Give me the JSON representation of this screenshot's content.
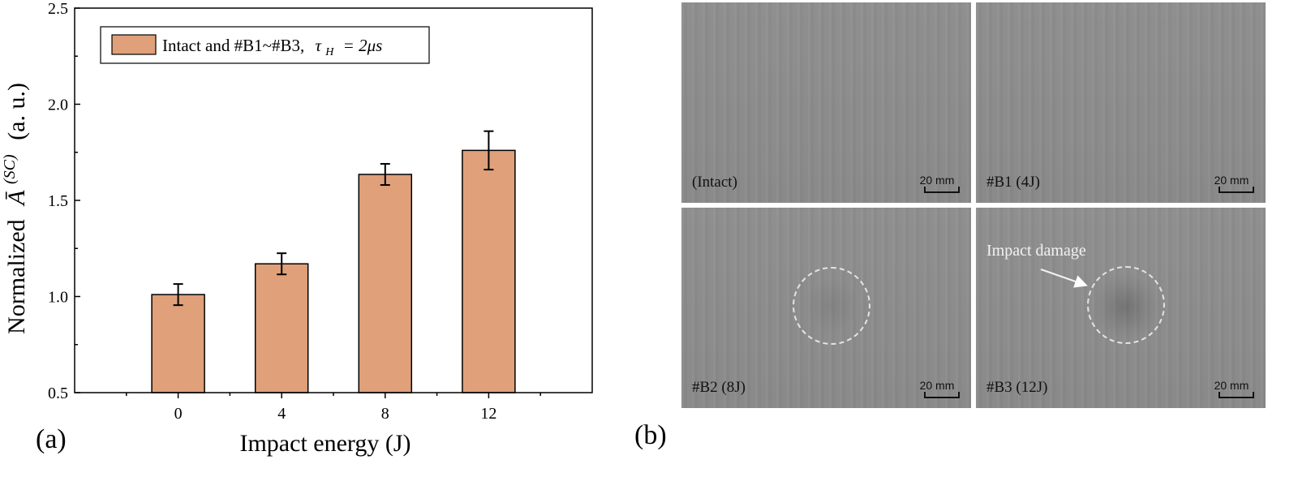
{
  "chart_data": {
    "type": "bar",
    "categories": [
      "0",
      "4",
      "8",
      "12"
    ],
    "values": [
      1.01,
      1.17,
      1.635,
      1.76
    ],
    "errors": [
      0.055,
      0.055,
      0.055,
      0.1
    ],
    "xlabel": "Impact energy (J)",
    "ylabel_prefix": "Normalized",
    "ylabel_symbol": "Ā",
    "ylabel_superscript": "(SC)",
    "ylabel_suffix": "(a. u.)",
    "ylim": [
      0.5,
      2.5
    ],
    "yticks": [
      "0.5",
      "1.0",
      "1.5",
      "2.0",
      "2.5"
    ],
    "legend": {
      "label": "Intact and #B1~#B3,",
      "math_tau": "τ",
      "math_sub": "H",
      "math_rest": "= 2μs",
      "placement": "top-left"
    },
    "bar_color": "#dfa07a",
    "grid": false
  },
  "panels": {
    "a_label": "(a)",
    "b_label": "(b)"
  },
  "images": [
    {
      "caption": "(Intact)",
      "scale": "20 mm"
    },
    {
      "caption": "#B1 (4J)",
      "scale": "20 mm"
    },
    {
      "caption": "#B2 (8J)",
      "scale": "20 mm"
    },
    {
      "caption": "#B3 (12J)",
      "scale": "20 mm"
    }
  ],
  "annotation": {
    "text": "Impact damage",
    "color": "#f2f2f2"
  }
}
